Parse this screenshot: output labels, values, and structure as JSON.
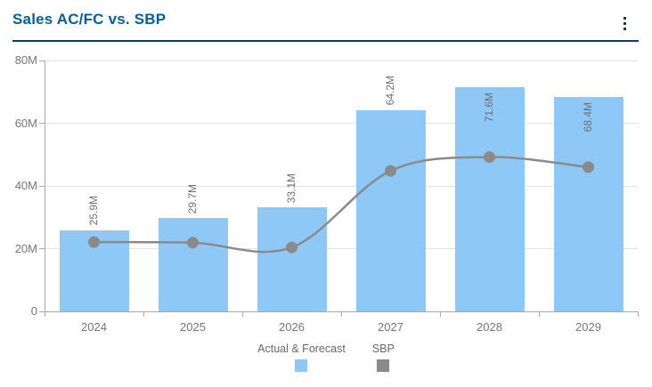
{
  "header": {
    "title": "Sales AC/FC vs. SBP"
  },
  "colors": {
    "title": "#045E99",
    "divider": "#0D3F63",
    "bar": "#8DC8F7",
    "line": "#8A8A8A",
    "grid": "#E3E3E3",
    "axis": "#A8A8A8",
    "axis_text": "#757575",
    "data_label": "#6E6E6E",
    "legend_text": "#666666",
    "menu_icon": "#333333"
  },
  "chart_data": {
    "type": "bar",
    "subtype": "combo-bar-line",
    "title": "Sales AC/FC vs. SBP",
    "categories": [
      "2024",
      "2025",
      "2026",
      "2027",
      "2028",
      "2029"
    ],
    "series": [
      {
        "name": "Actual & Forecast",
        "type": "bar",
        "color": "#8DC8F7",
        "values": [
          25.9,
          29.7,
          33.1,
          64.2,
          71.6,
          68.4
        ],
        "data_labels": [
          "25.9M",
          "29.7M",
          "33.1M",
          "64.2M",
          "71.6M",
          "68.4M"
        ],
        "labels_inside": [
          false,
          false,
          false,
          false,
          true,
          true
        ]
      },
      {
        "name": "SBP",
        "type": "line",
        "color": "#8A8A8A",
        "values": [
          22.1,
          21.9,
          20.4,
          44.8,
          49.2,
          46.0
        ]
      }
    ],
    "xlabel": "",
    "ylabel": "",
    "ylim": [
      0,
      80
    ],
    "yticks": [
      {
        "value": 0,
        "label": "0"
      },
      {
        "value": 20,
        "label": "20M"
      },
      {
        "value": 40,
        "label": "40M"
      },
      {
        "value": 60,
        "label": "60M"
      },
      {
        "value": 80,
        "label": "80M"
      }
    ],
    "grid": true,
    "legend_position": "bottom"
  }
}
